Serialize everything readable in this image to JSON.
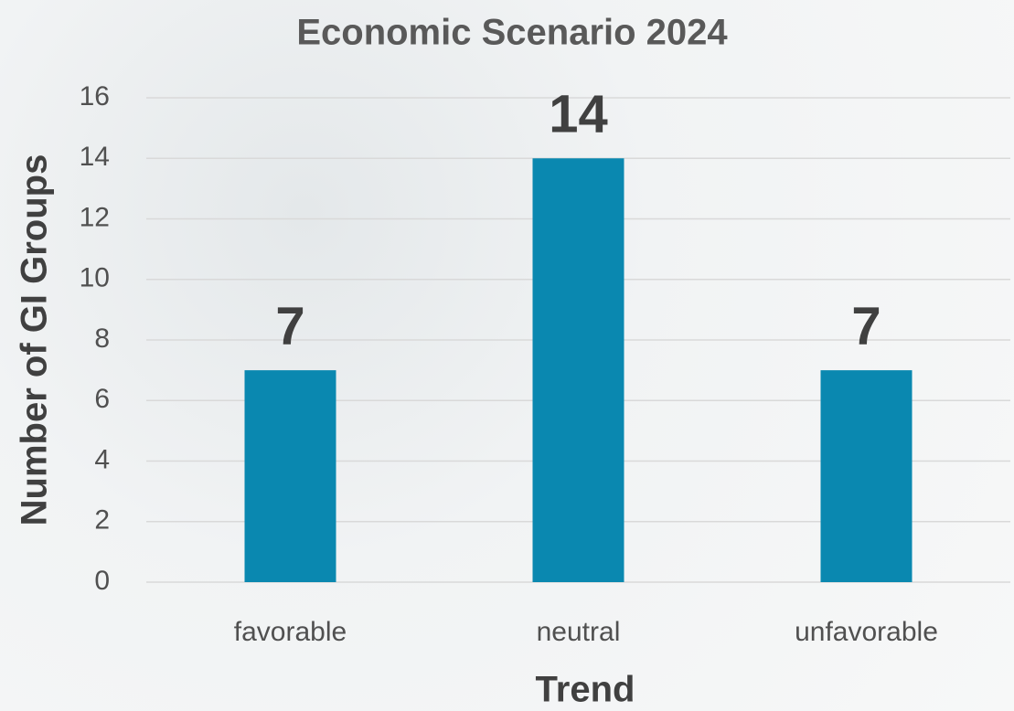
{
  "chart_data": {
    "type": "bar",
    "title": "Economic Scenario 2024",
    "x_label": "Trend",
    "y_label": "Number of GI Groups",
    "categories": [
      "favorable",
      "neutral",
      "unfavorable"
    ],
    "values": [
      7,
      14,
      7
    ],
    "color": "#0a88b0",
    "ylim": [
      0,
      16
    ],
    "yticks": [
      0,
      2,
      4,
      6,
      8,
      10,
      12,
      14,
      16
    ],
    "grid": true
  }
}
